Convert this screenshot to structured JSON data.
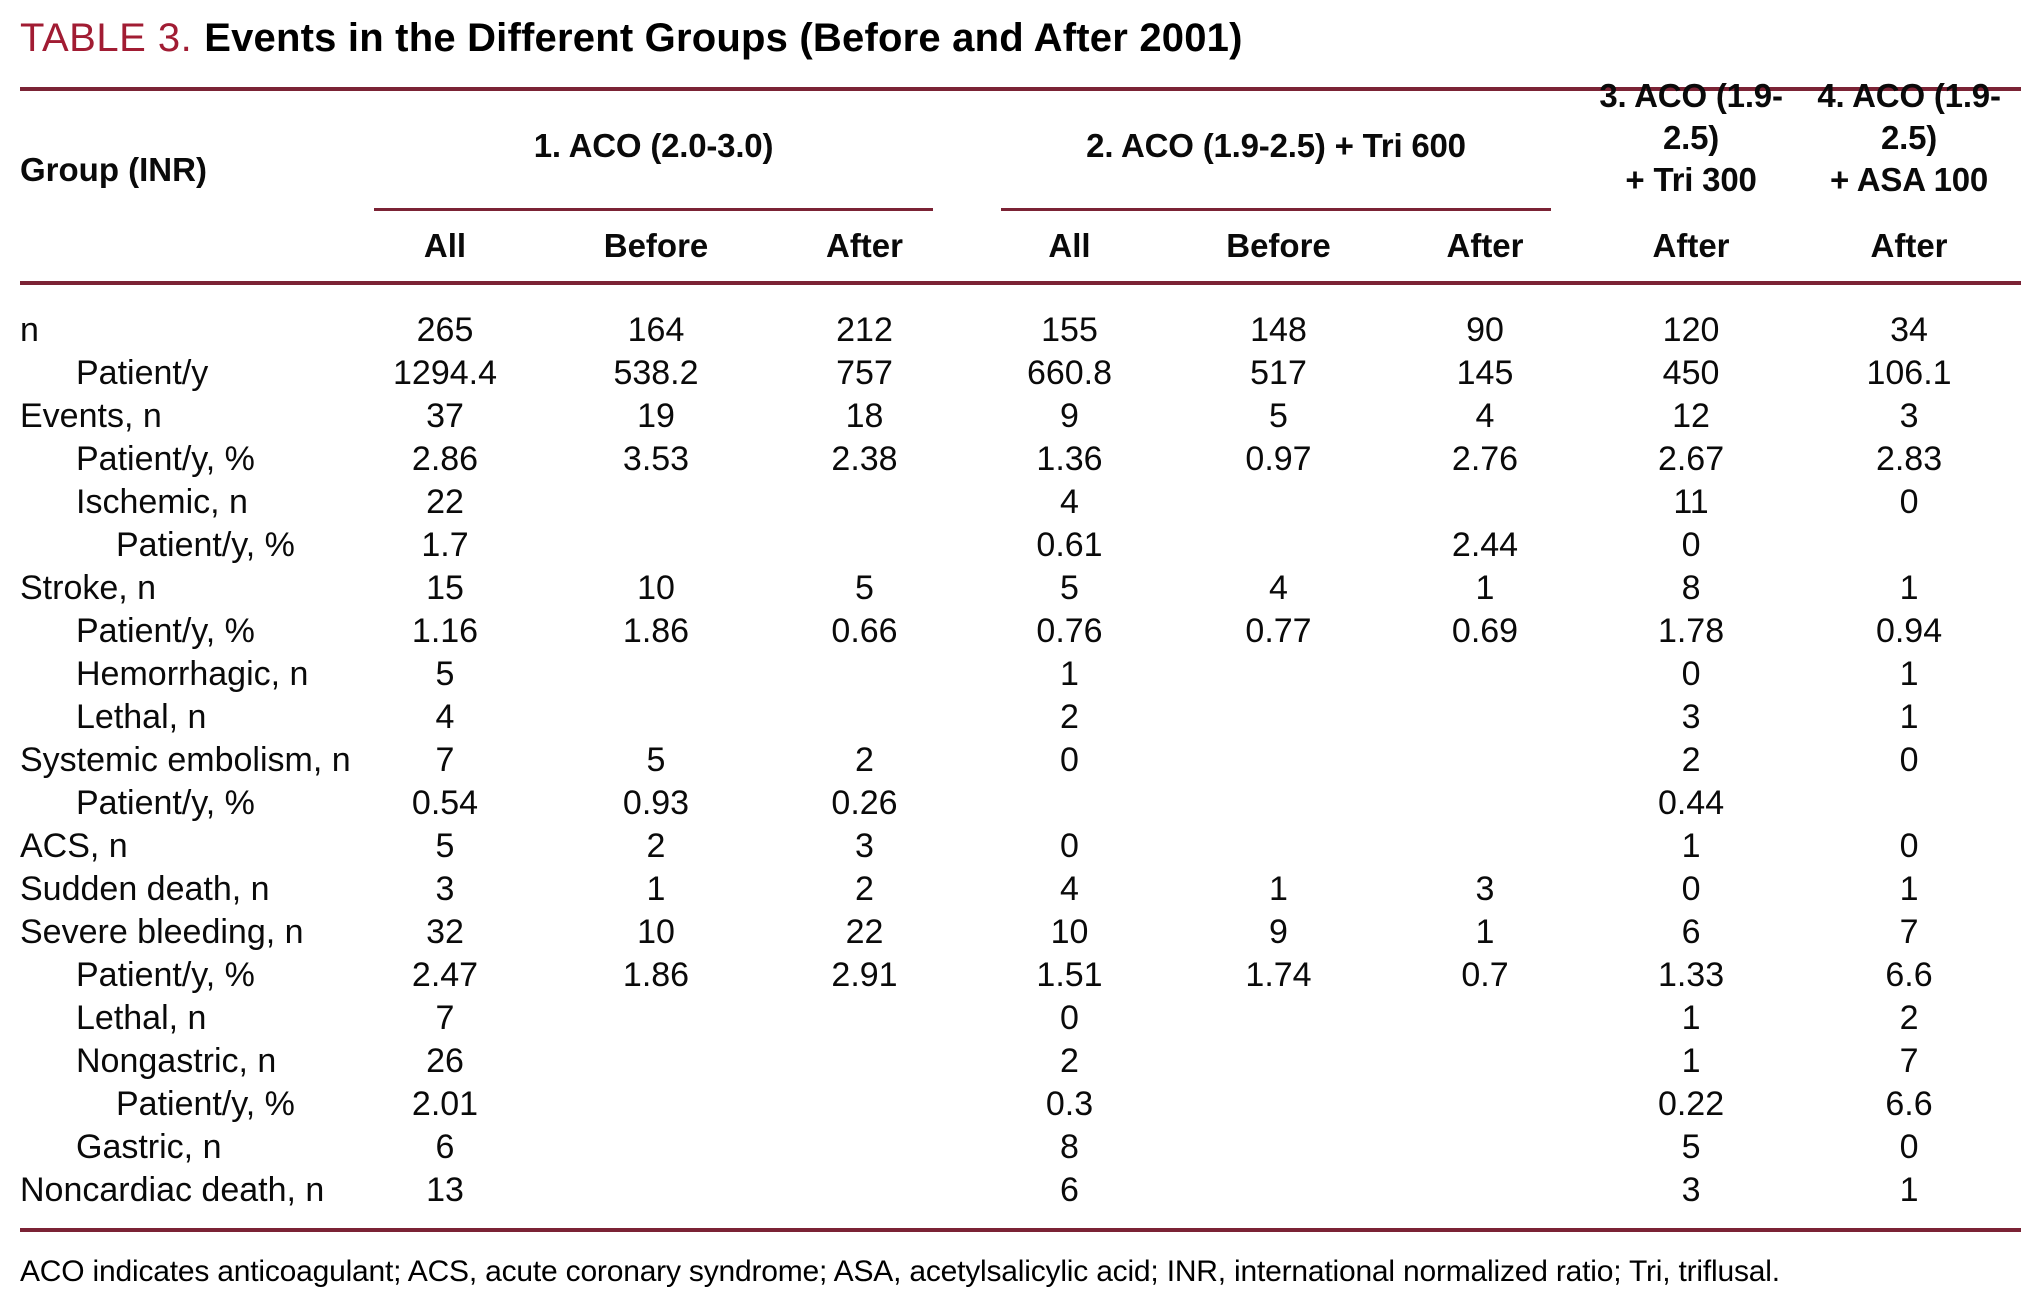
{
  "title": {
    "label": "TABLE 3.",
    "text": "Events in the Different Groups (Before and After 2001)"
  },
  "colors": {
    "accent": "#a11c33",
    "rule": "#7b2335"
  },
  "table": {
    "row_header": "Group (INR)",
    "groups": [
      {
        "lines": [
          "1. ACO (2.0-3.0)"
        ],
        "cols": [
          "All",
          "Before",
          "After"
        ]
      },
      {
        "lines": [
          "2. ACO (1.9-2.5) + Tri 600"
        ],
        "cols": [
          "All",
          "Before",
          "After"
        ]
      },
      {
        "lines": [
          "3. ACO (1.9-2.5)",
          "+ Tri 300"
        ],
        "cols": [
          "After"
        ]
      },
      {
        "lines": [
          "4. ACO (1.9-2.5)",
          "+ ASA 100"
        ],
        "cols": [
          "After"
        ]
      }
    ],
    "rows": [
      {
        "label": "n",
        "indent": 0,
        "values": [
          "265",
          "164",
          "212",
          "155",
          "148",
          "90",
          "120",
          "34"
        ]
      },
      {
        "label": "Patient/y",
        "indent": 1,
        "values": [
          "1294.4",
          "538.2",
          "757",
          "660.8",
          "517",
          "145",
          "450",
          "106.1"
        ]
      },
      {
        "label": "Events, n",
        "indent": 0,
        "values": [
          "37",
          "19",
          "18",
          "9",
          "5",
          "4",
          "12",
          "3"
        ]
      },
      {
        "label": "Patient/y, %",
        "indent": 1,
        "values": [
          "2.86",
          "3.53",
          "2.38",
          "1.36",
          "0.97",
          "2.76",
          "2.67",
          "2.83"
        ]
      },
      {
        "label": "Ischemic, n",
        "indent": 1,
        "values": [
          "22",
          "",
          "",
          "4",
          "",
          "",
          "11",
          "0"
        ]
      },
      {
        "label": "Patient/y, %",
        "indent": 2,
        "values": [
          "1.7",
          "",
          "",
          "0.61",
          "",
          "2.44",
          "0",
          ""
        ]
      },
      {
        "label": "Stroke, n",
        "indent": 0,
        "values": [
          "15",
          "10",
          "5",
          "5",
          "4",
          "1",
          "8",
          "1"
        ]
      },
      {
        "label": "Patient/y, %",
        "indent": 1,
        "values": [
          "1.16",
          "1.86",
          "0.66",
          "0.76",
          "0.77",
          "0.69",
          "1.78",
          "0.94"
        ]
      },
      {
        "label": "Hemorrhagic, n",
        "indent": 1,
        "values": [
          "5",
          "",
          "",
          "1",
          "",
          "",
          "0",
          "1"
        ]
      },
      {
        "label": "Lethal, n",
        "indent": 1,
        "values": [
          "4",
          "",
          "",
          "2",
          "",
          "",
          "3",
          "1"
        ]
      },
      {
        "label": "Systemic embolism, n",
        "indent": 0,
        "values": [
          "7",
          "5",
          "2",
          "0",
          "",
          "",
          "2",
          "0"
        ]
      },
      {
        "label": "Patient/y, %",
        "indent": 1,
        "values": [
          "0.54",
          "0.93",
          "0.26",
          "",
          "",
          "",
          "0.44",
          ""
        ]
      },
      {
        "label": "ACS, n",
        "indent": 0,
        "values": [
          "5",
          "2",
          "3",
          "0",
          "",
          "",
          "1",
          "0"
        ]
      },
      {
        "label": "Sudden death, n",
        "indent": 0,
        "values": [
          "3",
          "1",
          "2",
          "4",
          "1",
          "3",
          "0",
          "1"
        ]
      },
      {
        "label": "Severe bleeding, n",
        "indent": 0,
        "values": [
          "32",
          "10",
          "22",
          "10",
          "9",
          "1",
          "6",
          "7"
        ]
      },
      {
        "label": "Patient/y, %",
        "indent": 1,
        "values": [
          "2.47",
          "1.86",
          "2.91",
          "1.51",
          "1.74",
          "0.7",
          "1.33",
          "6.6"
        ]
      },
      {
        "label": "Lethal, n",
        "indent": 1,
        "values": [
          "7",
          "",
          "",
          "0",
          "",
          "",
          "1",
          "2"
        ]
      },
      {
        "label": "Nongastric, n",
        "indent": 1,
        "values": [
          "26",
          "",
          "",
          "2",
          "",
          "",
          "1",
          "7"
        ]
      },
      {
        "label": "Patient/y, %",
        "indent": 2,
        "values": [
          "2.01",
          "",
          "",
          "0.3",
          "",
          "",
          "0.22",
          "6.6"
        ]
      },
      {
        "label": "Gastric, n",
        "indent": 1,
        "values": [
          "6",
          "",
          "",
          "8",
          "",
          "",
          "5",
          "0"
        ]
      },
      {
        "label": "Noncardiac death, n",
        "indent": 0,
        "values": [
          "13",
          "",
          "",
          "6",
          "",
          "",
          "3",
          "1"
        ]
      }
    ]
  },
  "footnote": "ACO indicates anticoagulant; ACS, acute coronary syndrome; ASA, acetylsalicylic acid; INR, international normalized ratio; Tri, triflusal."
}
